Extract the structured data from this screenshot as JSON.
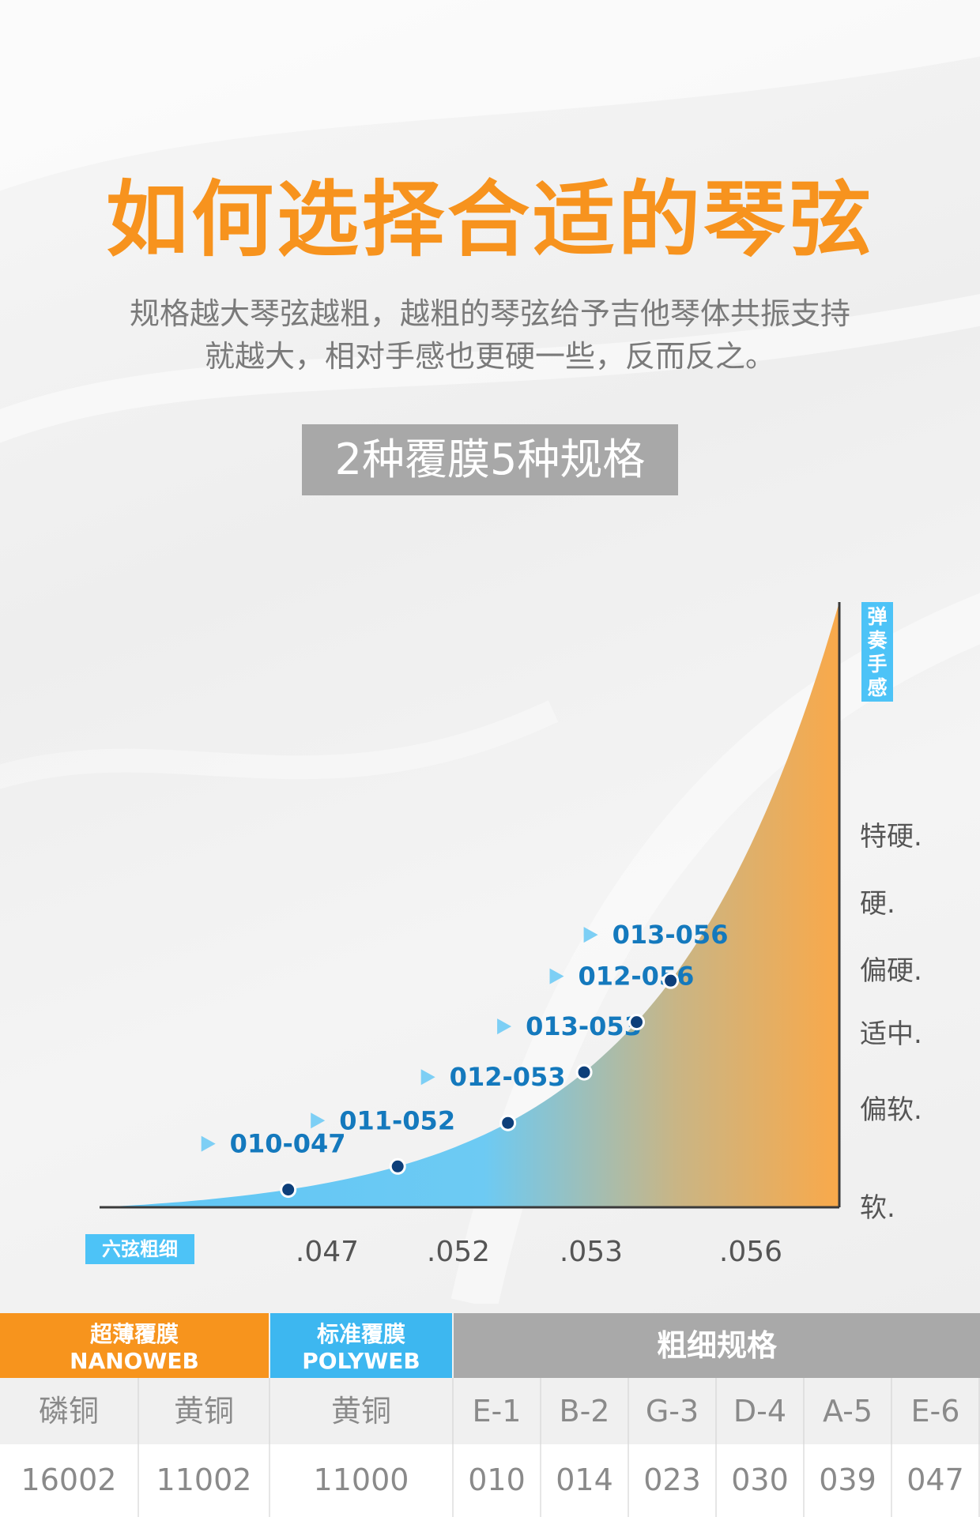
{
  "header": {
    "title": "如何选择合适的琴弦",
    "description_line1": "规格越大琴弦越粗，越粗的琴弦给予吉他琴体共振支持",
    "description_line2": "就越大，相对手感也更硬一些，反而反之。",
    "badge": "2种覆膜5种规格"
  },
  "chart_data": {
    "type": "line",
    "y_axis_label": "弹奏手感",
    "x_axis_label": "六弦粗细",
    "y_categories": [
      "软.",
      "偏软.",
      "适中.",
      "偏硬.",
      "硬.",
      "特硬."
    ],
    "x_tick_labels": [
      ".047",
      ".052",
      ".053",
      ".056"
    ],
    "points": [
      {
        "label": "010-047",
        "level": 0.5
      },
      {
        "label": "011-052",
        "level": 1
      },
      {
        "label": "012-053",
        "level": 2
      },
      {
        "label": "013-053",
        "level": 3
      },
      {
        "label": "012-056",
        "level": 4
      },
      {
        "label": "013-056",
        "level": 5
      }
    ],
    "colors": {
      "curve_fill_start": "#5fc6f5",
      "curve_fill_end": "#f9a94a",
      "point": "#0d3f7a",
      "label": "#1479bd",
      "arrow": "#7dcff5"
    }
  },
  "table": {
    "header": {
      "nano_line1": "超薄覆膜",
      "nano_line2": "NANOWEB",
      "poly_line1": "标准覆膜",
      "poly_line2": "POLYWEB",
      "spec": "粗细规格"
    },
    "materials": [
      "磷铜",
      "黄铜",
      "黄铜"
    ],
    "codes": [
      "16002",
      "11002",
      "11000"
    ],
    "string_names": [
      "E-1",
      "B-2",
      "G-3",
      "D-4",
      "A-5",
      "E-6"
    ],
    "gauges": [
      "010",
      "014",
      "023",
      "030",
      "039",
      "047"
    ]
  }
}
